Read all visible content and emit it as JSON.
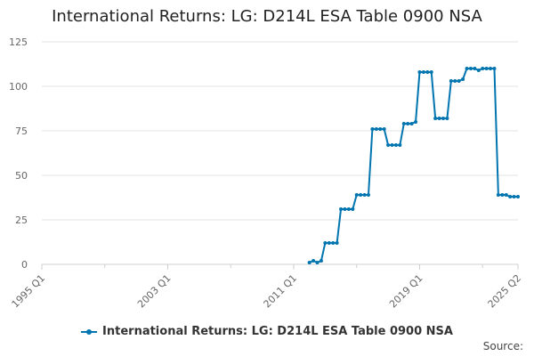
{
  "chart_data": {
    "type": "line",
    "title": "International Returns: LG: D214L ESA Table 0900 NSA",
    "xlabel": "",
    "ylabel": "",
    "x_tick_labels": [
      "1995 Q1",
      "2003 Q1",
      "2011 Q1",
      "2019 Q1",
      "2025 Q2"
    ],
    "x_range": [
      "1995 Q1",
      "2025 Q2"
    ],
    "y_ticks": [
      0,
      25,
      50,
      75,
      100,
      125
    ],
    "ylim": [
      0,
      125
    ],
    "grid": "horizontal",
    "legend_position": "bottom-center",
    "series": [
      {
        "name": "International Returns: LG: D214L ESA Table 0900 NSA",
        "color": "#0075b0",
        "points": [
          [
            "2012 Q1",
            1
          ],
          [
            "2012 Q2",
            2
          ],
          [
            "2012 Q3",
            1
          ],
          [
            "2012 Q4",
            2
          ],
          [
            "2013 Q1",
            12
          ],
          [
            "2013 Q2",
            12
          ],
          [
            "2013 Q3",
            12
          ],
          [
            "2013 Q4",
            12
          ],
          [
            "2014 Q1",
            31
          ],
          [
            "2014 Q2",
            31
          ],
          [
            "2014 Q3",
            31
          ],
          [
            "2014 Q4",
            31
          ],
          [
            "2015 Q1",
            39
          ],
          [
            "2015 Q2",
            39
          ],
          [
            "2015 Q3",
            39
          ],
          [
            "2015 Q4",
            39
          ],
          [
            "2016 Q1",
            76
          ],
          [
            "2016 Q2",
            76
          ],
          [
            "2016 Q3",
            76
          ],
          [
            "2016 Q4",
            76
          ],
          [
            "2017 Q1",
            67
          ],
          [
            "2017 Q2",
            67
          ],
          [
            "2017 Q3",
            67
          ],
          [
            "2017 Q4",
            67
          ],
          [
            "2018 Q1",
            79
          ],
          [
            "2018 Q2",
            79
          ],
          [
            "2018 Q3",
            79
          ],
          [
            "2018 Q4",
            80
          ],
          [
            "2019 Q1",
            108
          ],
          [
            "2019 Q2",
            108
          ],
          [
            "2019 Q3",
            108
          ],
          [
            "2019 Q4",
            108
          ],
          [
            "2020 Q1",
            82
          ],
          [
            "2020 Q2",
            82
          ],
          [
            "2020 Q3",
            82
          ],
          [
            "2020 Q4",
            82
          ],
          [
            "2021 Q1",
            103
          ],
          [
            "2021 Q2",
            103
          ],
          [
            "2021 Q3",
            103
          ],
          [
            "2021 Q4",
            104
          ],
          [
            "2022 Q1",
            110
          ],
          [
            "2022 Q2",
            110
          ],
          [
            "2022 Q3",
            110
          ],
          [
            "2022 Q4",
            109
          ],
          [
            "2023 Q1",
            110
          ],
          [
            "2023 Q2",
            110
          ],
          [
            "2023 Q3",
            110
          ],
          [
            "2023 Q4",
            110
          ],
          [
            "2024 Q1",
            39
          ],
          [
            "2024 Q2",
            39
          ],
          [
            "2024 Q3",
            39
          ],
          [
            "2024 Q4",
            38
          ],
          [
            "2025 Q1",
            38
          ],
          [
            "2025 Q2",
            38
          ]
        ]
      }
    ]
  },
  "legend": {
    "label": "International Returns: LG: D214L ESA Table 0900 NSA"
  },
  "footer": {
    "source": "Source:"
  }
}
